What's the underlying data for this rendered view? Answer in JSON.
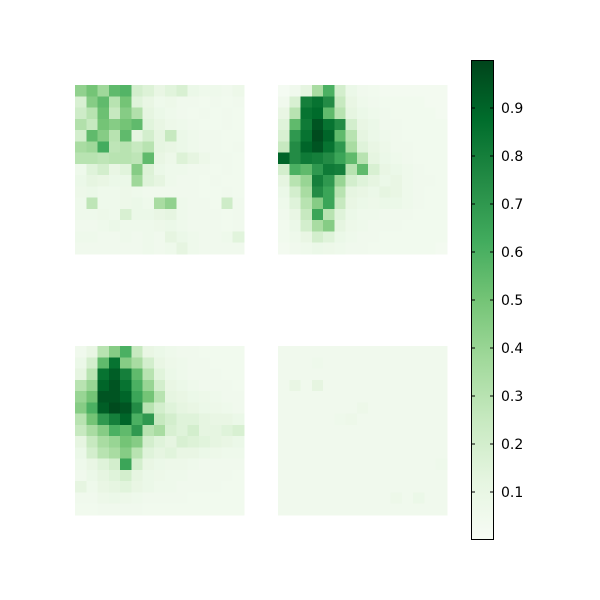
{
  "chart_data": {
    "type": "heatmap",
    "title": "",
    "layout": "2x2 grid of heatmap panels with shared colorbar on the right",
    "colormap": "Greens",
    "colormap_stops": [
      "#f7fcf5",
      "#e5f5e0",
      "#c7e9c0",
      "#a1d99b",
      "#74c476",
      "#41ab5d",
      "#238b45",
      "#006d2c",
      "#00441b"
    ],
    "grid_size": [
      15,
      15
    ],
    "value_range": [
      0,
      1
    ],
    "colorbar": {
      "range": [
        0,
        1
      ],
      "ticks": [
        0.1,
        0.2,
        0.3,
        0.4,
        0.5,
        0.6,
        0.7,
        0.8,
        0.9
      ],
      "tick_labels": [
        "0.1",
        "0.2",
        "0.3",
        "0.4",
        "0.5",
        "0.6",
        "0.7",
        "0.8",
        "0.9"
      ],
      "placement": "right"
    },
    "panels": [
      {
        "name": "",
        "position": "top-left",
        "values": [
          [
            0.42,
            0.5,
            0.38,
            0.55,
            0.58,
            0.2,
            0.16,
            0.1,
            0.14,
            0.18,
            0.08,
            0.06,
            0.06,
            0.05,
            0.07
          ],
          [
            0.18,
            0.45,
            0.55,
            0.3,
            0.5,
            0.15,
            0.1,
            0.06,
            0.07,
            0.05,
            0.05,
            0.04,
            0.05,
            0.04,
            0.05
          ],
          [
            0.22,
            0.3,
            0.52,
            0.25,
            0.45,
            0.32,
            0.12,
            0.08,
            0.06,
            0.05,
            0.04,
            0.05,
            0.04,
            0.05,
            0.04
          ],
          [
            0.32,
            0.25,
            0.5,
            0.45,
            0.5,
            0.55,
            0.14,
            0.1,
            0.07,
            0.06,
            0.05,
            0.04,
            0.04,
            0.05,
            0.04
          ],
          [
            0.2,
            0.55,
            0.45,
            0.3,
            0.55,
            0.12,
            0.2,
            0.12,
            0.25,
            0.08,
            0.06,
            0.05,
            0.05,
            0.04,
            0.04
          ],
          [
            0.35,
            0.38,
            0.62,
            0.28,
            0.3,
            0.25,
            0.3,
            0.12,
            0.1,
            0.08,
            0.06,
            0.05,
            0.05,
            0.04,
            0.05
          ],
          [
            0.3,
            0.3,
            0.28,
            0.3,
            0.3,
            0.28,
            0.55,
            0.1,
            0.07,
            0.16,
            0.12,
            0.07,
            0.05,
            0.05,
            0.04
          ],
          [
            0.06,
            0.15,
            0.2,
            0.1,
            0.14,
            0.45,
            0.16,
            0.08,
            0.06,
            0.06,
            0.05,
            0.05,
            0.04,
            0.05,
            0.04
          ],
          [
            0.08,
            0.12,
            0.1,
            0.08,
            0.08,
            0.38,
            0.15,
            0.12,
            0.06,
            0.05,
            0.05,
            0.04,
            0.05,
            0.04,
            0.04
          ],
          [
            0.07,
            0.08,
            0.06,
            0.06,
            0.07,
            0.06,
            0.05,
            0.05,
            0.05,
            0.05,
            0.05,
            0.04,
            0.04,
            0.05,
            0.04
          ],
          [
            0.06,
            0.28,
            0.06,
            0.06,
            0.07,
            0.08,
            0.06,
            0.35,
            0.42,
            0.06,
            0.05,
            0.05,
            0.04,
            0.22,
            0.05
          ],
          [
            0.06,
            0.06,
            0.07,
            0.06,
            0.18,
            0.08,
            0.08,
            0.1,
            0.12,
            0.06,
            0.05,
            0.05,
            0.05,
            0.04,
            0.05
          ],
          [
            0.05,
            0.05,
            0.06,
            0.08,
            0.06,
            0.06,
            0.06,
            0.07,
            0.08,
            0.06,
            0.05,
            0.05,
            0.05,
            0.04,
            0.05
          ],
          [
            0.06,
            0.06,
            0.05,
            0.05,
            0.06,
            0.05,
            0.06,
            0.05,
            0.12,
            0.08,
            0.06,
            0.05,
            0.05,
            0.06,
            0.14
          ],
          [
            0.05,
            0.05,
            0.05,
            0.05,
            0.05,
            0.05,
            0.06,
            0.05,
            0.06,
            0.12,
            0.06,
            0.05,
            0.05,
            0.05,
            0.05
          ]
        ]
      },
      {
        "name": "",
        "position": "top-right",
        "values": [
          [
            0.02,
            0.05,
            0.12,
            0.35,
            0.6,
            0.2,
            0.08,
            0.05,
            0.04,
            0.03,
            0.03,
            0.03,
            0.03,
            0.03,
            0.03
          ],
          [
            0.05,
            0.18,
            0.8,
            0.85,
            0.75,
            0.25,
            0.1,
            0.06,
            0.05,
            0.04,
            0.04,
            0.04,
            0.04,
            0.03,
            0.03
          ],
          [
            0.1,
            0.3,
            0.85,
            0.88,
            0.55,
            0.3,
            0.12,
            0.08,
            0.06,
            0.05,
            0.04,
            0.04,
            0.04,
            0.04,
            0.03
          ],
          [
            0.15,
            0.55,
            0.82,
            0.95,
            0.85,
            0.75,
            0.2,
            0.1,
            0.08,
            0.05,
            0.05,
            0.04,
            0.04,
            0.04,
            0.04
          ],
          [
            0.18,
            0.7,
            0.85,
            0.98,
            0.9,
            0.55,
            0.3,
            0.12,
            0.08,
            0.06,
            0.05,
            0.04,
            0.04,
            0.04,
            0.04
          ],
          [
            0.25,
            0.75,
            0.9,
            0.95,
            0.85,
            0.7,
            0.35,
            0.15,
            0.1,
            0.07,
            0.05,
            0.05,
            0.04,
            0.04,
            0.04
          ],
          [
            0.9,
            0.75,
            0.82,
            0.8,
            0.75,
            0.65,
            0.55,
            0.3,
            0.12,
            0.08,
            0.06,
            0.05,
            0.04,
            0.04,
            0.04
          ],
          [
            0.2,
            0.6,
            0.55,
            0.7,
            0.82,
            0.8,
            0.3,
            0.55,
            0.18,
            0.1,
            0.08,
            0.06,
            0.05,
            0.04,
            0.04
          ],
          [
            0.12,
            0.3,
            0.4,
            0.8,
            0.7,
            0.4,
            0.2,
            0.15,
            0.12,
            0.08,
            0.1,
            0.06,
            0.05,
            0.05,
            0.04
          ],
          [
            0.08,
            0.2,
            0.35,
            0.75,
            0.65,
            0.3,
            0.12,
            0.1,
            0.08,
            0.12,
            0.1,
            0.06,
            0.05,
            0.04,
            0.04
          ],
          [
            0.06,
            0.15,
            0.3,
            0.45,
            0.65,
            0.25,
            0.1,
            0.08,
            0.07,
            0.08,
            0.08,
            0.06,
            0.05,
            0.04,
            0.04
          ],
          [
            0.05,
            0.1,
            0.25,
            0.65,
            0.3,
            0.15,
            0.08,
            0.06,
            0.06,
            0.05,
            0.05,
            0.05,
            0.04,
            0.04,
            0.04
          ],
          [
            0.04,
            0.08,
            0.2,
            0.35,
            0.45,
            0.12,
            0.07,
            0.06,
            0.05,
            0.05,
            0.05,
            0.04,
            0.04,
            0.04,
            0.04
          ],
          [
            0.04,
            0.06,
            0.1,
            0.2,
            0.15,
            0.08,
            0.06,
            0.05,
            0.05,
            0.04,
            0.04,
            0.04,
            0.04,
            0.04,
            0.04
          ],
          [
            0.03,
            0.05,
            0.06,
            0.08,
            0.07,
            0.06,
            0.05,
            0.05,
            0.04,
            0.04,
            0.04,
            0.04,
            0.04,
            0.04,
            0.03
          ]
        ]
      },
      {
        "name": "",
        "position": "bottom-left",
        "values": [
          [
            0.05,
            0.1,
            0.3,
            0.45,
            0.6,
            0.25,
            0.1,
            0.08,
            0.06,
            0.05,
            0.05,
            0.04,
            0.04,
            0.04,
            0.04
          ],
          [
            0.08,
            0.2,
            0.55,
            0.85,
            0.45,
            0.35,
            0.2,
            0.1,
            0.07,
            0.06,
            0.05,
            0.05,
            0.04,
            0.04,
            0.04
          ],
          [
            0.12,
            0.3,
            0.85,
            0.92,
            0.8,
            0.55,
            0.3,
            0.14,
            0.08,
            0.06,
            0.05,
            0.05,
            0.05,
            0.04,
            0.04
          ],
          [
            0.3,
            0.4,
            0.9,
            0.95,
            0.85,
            0.6,
            0.4,
            0.2,
            0.1,
            0.08,
            0.06,
            0.05,
            0.05,
            0.05,
            0.04
          ],
          [
            0.4,
            0.5,
            0.95,
            0.95,
            0.9,
            0.65,
            0.5,
            0.3,
            0.12,
            0.1,
            0.08,
            0.07,
            0.06,
            0.05,
            0.05
          ],
          [
            0.45,
            0.6,
            0.92,
            0.98,
            0.95,
            0.75,
            0.3,
            0.2,
            0.15,
            0.12,
            0.1,
            0.08,
            0.07,
            0.06,
            0.05
          ],
          [
            0.3,
            0.5,
            0.7,
            0.8,
            0.9,
            0.6,
            0.7,
            0.25,
            0.2,
            0.15,
            0.15,
            0.12,
            0.1,
            0.1,
            0.08
          ],
          [
            0.25,
            0.35,
            0.45,
            0.6,
            0.55,
            0.7,
            0.3,
            0.35,
            0.18,
            0.15,
            0.2,
            0.12,
            0.12,
            0.15,
            0.18
          ],
          [
            0.12,
            0.25,
            0.35,
            0.4,
            0.5,
            0.45,
            0.2,
            0.15,
            0.12,
            0.18,
            0.16,
            0.14,
            0.12,
            0.1,
            0.08
          ],
          [
            0.08,
            0.2,
            0.3,
            0.35,
            0.45,
            0.3,
            0.15,
            0.12,
            0.14,
            0.1,
            0.1,
            0.08,
            0.07,
            0.06,
            0.06
          ],
          [
            0.06,
            0.1,
            0.15,
            0.2,
            0.65,
            0.2,
            0.1,
            0.08,
            0.07,
            0.07,
            0.06,
            0.05,
            0.05,
            0.05,
            0.05
          ],
          [
            0.05,
            0.08,
            0.12,
            0.15,
            0.2,
            0.12,
            0.08,
            0.07,
            0.06,
            0.06,
            0.05,
            0.05,
            0.05,
            0.05,
            0.04
          ],
          [
            0.12,
            0.06,
            0.1,
            0.12,
            0.14,
            0.1,
            0.08,
            0.06,
            0.06,
            0.05,
            0.05,
            0.05,
            0.05,
            0.04,
            0.04
          ],
          [
            0.05,
            0.05,
            0.07,
            0.08,
            0.07,
            0.06,
            0.05,
            0.05,
            0.05,
            0.05,
            0.04,
            0.04,
            0.04,
            0.04,
            0.04
          ],
          [
            0.04,
            0.04,
            0.05,
            0.05,
            0.05,
            0.05,
            0.04,
            0.04,
            0.04,
            0.04,
            0.04,
            0.04,
            0.04,
            0.04,
            0.04
          ]
        ]
      },
      {
        "name": "",
        "position": "bottom-right",
        "values": [
          [
            0.05,
            0.05,
            0.05,
            0.05,
            0.05,
            0.05,
            0.05,
            0.05,
            0.05,
            0.05,
            0.05,
            0.05,
            0.05,
            0.05,
            0.05
          ],
          [
            0.05,
            0.05,
            0.05,
            0.06,
            0.05,
            0.05,
            0.05,
            0.05,
            0.05,
            0.05,
            0.05,
            0.05,
            0.05,
            0.05,
            0.05
          ],
          [
            0.05,
            0.05,
            0.05,
            0.05,
            0.05,
            0.05,
            0.05,
            0.05,
            0.05,
            0.05,
            0.05,
            0.05,
            0.05,
            0.05,
            0.05
          ],
          [
            0.05,
            0.1,
            0.05,
            0.12,
            0.05,
            0.05,
            0.05,
            0.05,
            0.05,
            0.05,
            0.05,
            0.05,
            0.05,
            0.05,
            0.05
          ],
          [
            0.05,
            0.05,
            0.05,
            0.05,
            0.05,
            0.05,
            0.05,
            0.05,
            0.05,
            0.05,
            0.05,
            0.05,
            0.05,
            0.05,
            0.05
          ],
          [
            0.05,
            0.05,
            0.05,
            0.05,
            0.05,
            0.05,
            0.05,
            0.07,
            0.05,
            0.05,
            0.05,
            0.05,
            0.05,
            0.05,
            0.05
          ],
          [
            0.05,
            0.05,
            0.05,
            0.05,
            0.05,
            0.06,
            0.07,
            0.05,
            0.05,
            0.05,
            0.05,
            0.05,
            0.05,
            0.05,
            0.05
          ],
          [
            0.05,
            0.05,
            0.05,
            0.05,
            0.05,
            0.05,
            0.05,
            0.05,
            0.05,
            0.05,
            0.05,
            0.05,
            0.05,
            0.05,
            0.05
          ],
          [
            0.05,
            0.05,
            0.05,
            0.05,
            0.05,
            0.05,
            0.05,
            0.05,
            0.05,
            0.05,
            0.05,
            0.05,
            0.05,
            0.05,
            0.05
          ],
          [
            0.05,
            0.05,
            0.05,
            0.05,
            0.05,
            0.05,
            0.05,
            0.05,
            0.05,
            0.05,
            0.05,
            0.05,
            0.05,
            0.05,
            0.05
          ],
          [
            0.05,
            0.05,
            0.05,
            0.05,
            0.05,
            0.05,
            0.05,
            0.05,
            0.05,
            0.05,
            0.05,
            0.05,
            0.05,
            0.05,
            0.06
          ],
          [
            0.05,
            0.05,
            0.05,
            0.05,
            0.05,
            0.05,
            0.05,
            0.05,
            0.05,
            0.05,
            0.05,
            0.05,
            0.05,
            0.05,
            0.05
          ],
          [
            0.05,
            0.05,
            0.05,
            0.05,
            0.05,
            0.05,
            0.05,
            0.05,
            0.05,
            0.05,
            0.05,
            0.05,
            0.05,
            0.05,
            0.05
          ],
          [
            0.05,
            0.05,
            0.05,
            0.05,
            0.05,
            0.05,
            0.05,
            0.05,
            0.05,
            0.05,
            0.07,
            0.05,
            0.08,
            0.05,
            0.05
          ],
          [
            0.05,
            0.05,
            0.05,
            0.05,
            0.05,
            0.05,
            0.05,
            0.05,
            0.05,
            0.05,
            0.05,
            0.05,
            0.05,
            0.05,
            0.05
          ]
        ]
      }
    ]
  }
}
